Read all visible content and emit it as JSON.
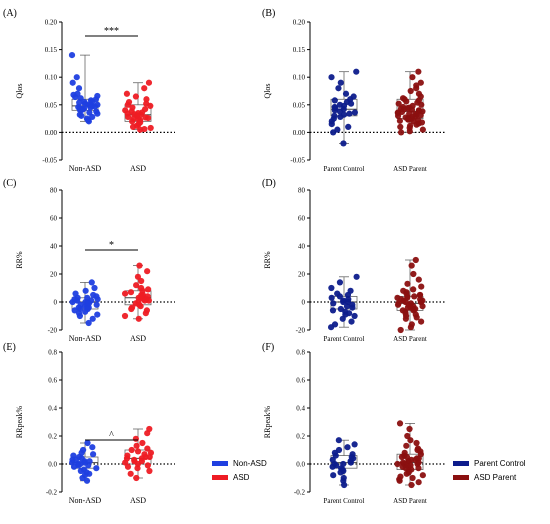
{
  "chart_data": [
    {
      "panel": "(A)",
      "type": "box-scatter",
      "ylabel": "Qlos",
      "ylim": [
        -0.05,
        0.2
      ],
      "yticks": [
        -0.05,
        0.0,
        0.05,
        0.1,
        0.15,
        0.2
      ],
      "ytick_labels": [
        "-0.05",
        "0.00",
        "0.05",
        "0.10",
        "0.15",
        "0.20"
      ],
      "categories": [
        "Non-ASD",
        "ASD"
      ],
      "colors": [
        "#1f3fe0",
        "#ee1c24"
      ],
      "boxes": [
        {
          "q1": 0.04,
          "median": 0.048,
          "q3": 0.06,
          "min": 0.02,
          "max": 0.14
        },
        {
          "q1": 0.02,
          "median": 0.032,
          "q3": 0.05,
          "min": 0.005,
          "max": 0.09
        }
      ],
      "points": [
        [
          0.14,
          0.1,
          0.09,
          0.08,
          0.07,
          0.068,
          0.066,
          0.064,
          0.062,
          0.06,
          0.058,
          0.056,
          0.055,
          0.054,
          0.052,
          0.05,
          0.05,
          0.049,
          0.048,
          0.047,
          0.046,
          0.045,
          0.044,
          0.043,
          0.042,
          0.041,
          0.04,
          0.038,
          0.036,
          0.034,
          0.032,
          0.03,
          0.028,
          0.025,
          0.022,
          0.02
        ],
        [
          0.09,
          0.08,
          0.07,
          0.065,
          0.06,
          0.055,
          0.052,
          0.05,
          0.048,
          0.045,
          0.042,
          0.04,
          0.038,
          0.036,
          0.035,
          0.034,
          0.033,
          0.032,
          0.031,
          0.03,
          0.028,
          0.027,
          0.026,
          0.025,
          0.024,
          0.022,
          0.02,
          0.018,
          0.015,
          0.012,
          0.01,
          0.008,
          0.006,
          0.005
        ]
      ],
      "significance": "***"
    },
    {
      "panel": "(B)",
      "type": "box-scatter",
      "ylabel": "Qlos",
      "ylim": [
        -0.05,
        0.2
      ],
      "yticks": [
        -0.05,
        0.0,
        0.05,
        0.1,
        0.15,
        0.2
      ],
      "ytick_labels": [
        "-0.05",
        "0.00",
        "0.05",
        "0.10",
        "0.15",
        "0.20"
      ],
      "categories": [
        "Parent Control",
        "ASD Parent"
      ],
      "colors": [
        "#0d1c8c",
        "#8b1010"
      ],
      "boxes": [
        {
          "q1": 0.03,
          "median": 0.042,
          "q3": 0.06,
          "min": -0.02,
          "max": 0.11
        },
        {
          "q1": 0.025,
          "median": 0.038,
          "q3": 0.06,
          "min": 0.0,
          "max": 0.11
        }
      ],
      "points": [
        [
          0.11,
          0.1,
          0.09,
          0.08,
          0.07,
          0.065,
          0.06,
          0.058,
          0.055,
          0.052,
          0.05,
          0.048,
          0.046,
          0.044,
          0.042,
          0.04,
          0.038,
          0.036,
          0.034,
          0.032,
          0.03,
          0.028,
          0.025,
          0.02,
          0.015,
          0.01,
          0.005,
          0.0,
          -0.02
        ],
        [
          0.11,
          0.1,
          0.09,
          0.085,
          0.08,
          0.075,
          0.07,
          0.065,
          0.062,
          0.06,
          0.058,
          0.056,
          0.054,
          0.052,
          0.05,
          0.048,
          0.046,
          0.045,
          0.044,
          0.043,
          0.042,
          0.041,
          0.04,
          0.039,
          0.038,
          0.037,
          0.036,
          0.035,
          0.034,
          0.033,
          0.032,
          0.031,
          0.03,
          0.029,
          0.028,
          0.027,
          0.026,
          0.025,
          0.024,
          0.023,
          0.022,
          0.021,
          0.02,
          0.018,
          0.016,
          0.014,
          0.012,
          0.01,
          0.008,
          0.005,
          0.002,
          0.0
        ]
      ],
      "significance": ""
    },
    {
      "panel": "(C)",
      "type": "box-scatter",
      "ylabel": "RR%",
      "ylim": [
        -20,
        80
      ],
      "yticks": [
        -20,
        0,
        20,
        40,
        60,
        80
      ],
      "ytick_labels": [
        "-20",
        "0",
        "20",
        "40",
        "60",
        "80"
      ],
      "categories": [
        "Non-ASD",
        "ASD"
      ],
      "colors": [
        "#1f3fe0",
        "#ee1c24"
      ],
      "boxes": [
        {
          "q1": -5,
          "median": 0,
          "q3": 3,
          "min": -15,
          "max": 14
        },
        {
          "q1": -2,
          "median": 3,
          "q3": 8,
          "min": -12,
          "max": 26
        }
      ],
      "points": [
        [
          14,
          10,
          8,
          6,
          5,
          4,
          3,
          3,
          2,
          2,
          1,
          1,
          0,
          0,
          0,
          -1,
          -1,
          -2,
          -2,
          -3,
          -3,
          -4,
          -4,
          -5,
          -5,
          -6,
          -7,
          -8,
          -9,
          -10,
          -12,
          -15
        ],
        [
          26,
          22,
          18,
          15,
          12,
          10,
          9,
          8,
          7,
          6,
          5,
          5,
          4,
          4,
          3,
          3,
          2,
          2,
          1,
          1,
          0,
          -1,
          -2,
          -3,
          -4,
          -5,
          -6,
          -8,
          -10,
          -12
        ]
      ],
      "significance": "*"
    },
    {
      "panel": "(D)",
      "type": "box-scatter",
      "ylabel": "RR%",
      "ylim": [
        -20,
        80
      ],
      "yticks": [
        -20,
        0,
        20,
        40,
        60,
        80
      ],
      "ytick_labels": [
        "-20",
        "0",
        "20",
        "40",
        "60",
        "80"
      ],
      "categories": [
        "Parent Control",
        "ASD Parent"
      ],
      "colors": [
        "#0d1c8c",
        "#8b1010"
      ],
      "boxes": [
        {
          "q1": -5,
          "median": 0,
          "q3": 4,
          "min": -18,
          "max": 18
        },
        {
          "q1": -6,
          "median": -1,
          "q3": 4,
          "min": -20,
          "max": 30
        }
      ],
      "points": [
        [
          18,
          14,
          10,
          8,
          6,
          5,
          4,
          3,
          2,
          1,
          0,
          0,
          -1,
          -2,
          -3,
          -4,
          -5,
          -6,
          -7,
          -8,
          -9,
          -10,
          -12,
          -14,
          -16,
          -18
        ],
        [
          30,
          26,
          20,
          16,
          13,
          11,
          9,
          8,
          7,
          6,
          5,
          5,
          4,
          4,
          3,
          3,
          2,
          2,
          1,
          1,
          0,
          0,
          0,
          -1,
          -1,
          -2,
          -2,
          -3,
          -3,
          -4,
          -4,
          -5,
          -5,
          -6,
          -6,
          -7,
          -8,
          -9,
          -10,
          -11,
          -12,
          -14,
          -16,
          -18,
          -20
        ]
      ],
      "significance": ""
    },
    {
      "panel": "(E)",
      "type": "box-scatter",
      "ylabel": "RRpeak%",
      "ylim": [
        -0.2,
        0.8
      ],
      "yticks": [
        -0.2,
        0.0,
        0.2,
        0.4,
        0.6,
        0.8
      ],
      "ytick_labels": [
        "-0.2",
        "0.0",
        "0.2",
        "0.4",
        "0.6",
        "0.8"
      ],
      "categories": [
        "Non-ASD",
        "ASD"
      ],
      "colors": [
        "#1f3fe0",
        "#ee1c24"
      ],
      "boxes": [
        {
          "q1": -0.03,
          "median": 0.01,
          "q3": 0.05,
          "min": -0.12,
          "max": 0.15
        },
        {
          "q1": 0.0,
          "median": 0.04,
          "q3": 0.1,
          "min": -0.1,
          "max": 0.25
        }
      ],
      "points": [
        [
          0.15,
          0.12,
          0.1,
          0.08,
          0.07,
          0.06,
          0.05,
          0.04,
          0.03,
          0.03,
          0.02,
          0.02,
          0.01,
          0.01,
          0.0,
          0.0,
          -0.01,
          -0.01,
          -0.02,
          -0.03,
          -0.04,
          -0.05,
          -0.06,
          -0.07,
          -0.08,
          -0.1,
          -0.12
        ],
        [
          0.25,
          0.22,
          0.18,
          0.15,
          0.13,
          0.11,
          0.1,
          0.09,
          0.08,
          0.07,
          0.06,
          0.05,
          0.05,
          0.04,
          0.04,
          0.03,
          0.02,
          0.02,
          0.01,
          0.0,
          -0.01,
          -0.02,
          -0.03,
          -0.05,
          -0.07,
          -0.1
        ]
      ],
      "significance": "^"
    },
    {
      "panel": "(F)",
      "type": "box-scatter",
      "ylabel": "RRpeak%",
      "ylim": [
        -0.2,
        0.8
      ],
      "yticks": [
        -0.2,
        0.0,
        0.2,
        0.4,
        0.6,
        0.8
      ],
      "ytick_labels": [
        "-0.2",
        "0.0",
        "0.2",
        "0.4",
        "0.6",
        "0.8"
      ],
      "categories": [
        "Parent Control",
        "ASD Parent"
      ],
      "colors": [
        "#0d1c8c",
        "#8b1010"
      ],
      "boxes": [
        {
          "q1": -0.03,
          "median": 0.01,
          "q3": 0.06,
          "min": -0.15,
          "max": 0.17
        },
        {
          "q1": -0.04,
          "median": 0.01,
          "q3": 0.07,
          "min": -0.15,
          "max": 0.29
        }
      ],
      "points": [
        [
          0.17,
          0.14,
          0.12,
          0.1,
          0.08,
          0.07,
          0.06,
          0.05,
          0.04,
          0.03,
          0.02,
          0.01,
          0.0,
          0.0,
          -0.01,
          -0.02,
          -0.03,
          -0.04,
          -0.05,
          -0.06,
          -0.08,
          -0.1,
          -0.12,
          -0.15
        ],
        [
          0.29,
          0.25,
          0.2,
          0.17,
          0.15,
          0.13,
          0.11,
          0.1,
          0.09,
          0.08,
          0.07,
          0.06,
          0.05,
          0.05,
          0.04,
          0.04,
          0.03,
          0.03,
          0.02,
          0.02,
          0.01,
          0.01,
          0.0,
          0.0,
          0.0,
          -0.01,
          -0.01,
          -0.02,
          -0.02,
          -0.03,
          -0.03,
          -0.04,
          -0.05,
          -0.06,
          -0.07,
          -0.08,
          -0.09,
          -0.1,
          -0.11,
          -0.12,
          -0.13,
          -0.15
        ]
      ],
      "significance": ""
    }
  ],
  "legends": {
    "left": [
      {
        "label": "Non-ASD",
        "color": "#1f3fe0"
      },
      {
        "label": "ASD",
        "color": "#ee1c24"
      }
    ],
    "right": [
      {
        "label": "Parent Control",
        "color": "#0d1c8c"
      },
      {
        "label": "ASD Parent",
        "color": "#8b1010"
      }
    ]
  }
}
